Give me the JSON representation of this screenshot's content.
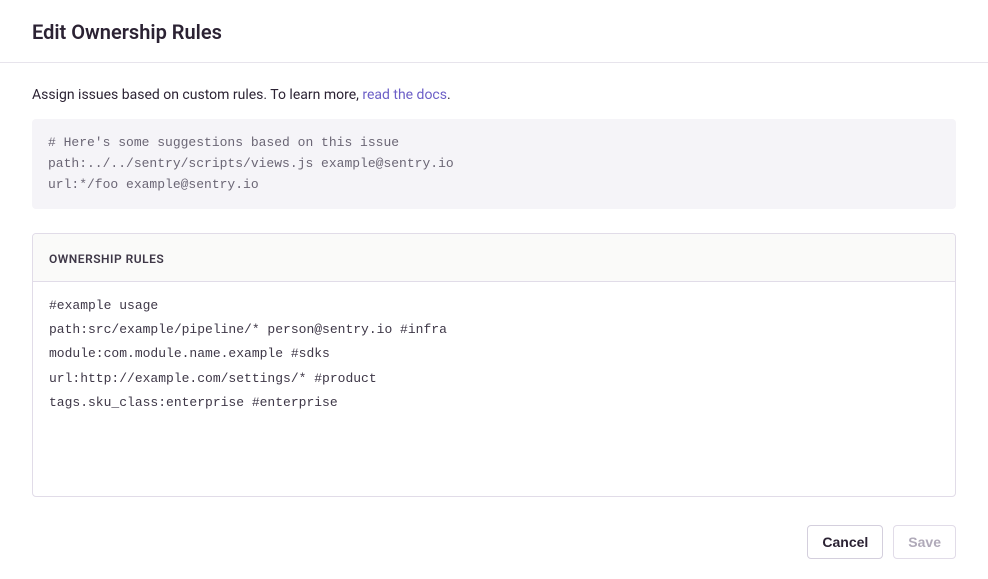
{
  "header": {
    "title": "Edit Ownership Rules"
  },
  "intro": {
    "text_prefix": "Assign issues based on custom rules. To learn more, ",
    "link_text": "read the docs",
    "text_suffix": "."
  },
  "suggestions": {
    "content": "# Here's some suggestions based on this issue\npath:../../sentry/scripts/views.js example@sentry.io\nurl:*/foo example@sentry.io"
  },
  "rules": {
    "label": "Ownership Rules",
    "value": "#example usage\npath:src/example/pipeline/* person@sentry.io #infra\nmodule:com.module.name.example #sdks\nurl:http://example.com/settings/* #product\ntags.sku_class:enterprise #enterprise"
  },
  "footer": {
    "cancel_label": "Cancel",
    "save_label": "Save"
  },
  "colors": {
    "border": "#e1dce8",
    "link": "#6c5fc7",
    "text_primary": "#2b2233",
    "text_muted": "#6b6675",
    "bg_suggestion": "#f5f4f8",
    "bg_panel_header": "#fafaf9"
  }
}
